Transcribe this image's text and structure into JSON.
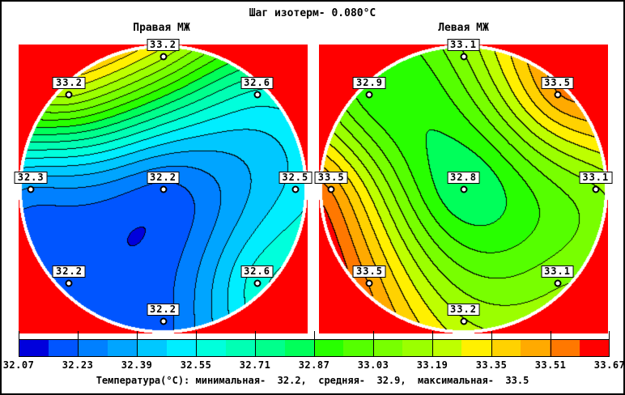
{
  "window": {
    "title": "Шаг изотерм- 0.080°C"
  },
  "chart_data": {
    "type": "heatmap",
    "subtype": "filled-contour-thermogram",
    "isotherm_step_label": "Шаг изотерм- 0.080°C",
    "isotherm_step_c": 0.08,
    "maps": [
      {
        "title": "Правая МЖ",
        "points": [
          {
            "position": "top",
            "rx": 0.0,
            "ry": -0.915,
            "value": 33.2
          },
          {
            "position": "top-left",
            "rx": -0.65,
            "ry": -0.65,
            "value": 33.2
          },
          {
            "position": "top-right",
            "rx": 0.65,
            "ry": -0.65,
            "value": 32.6
          },
          {
            "position": "left",
            "rx": -0.915,
            "ry": 0.0,
            "value": 32.3
          },
          {
            "position": "center",
            "rx": 0.0,
            "ry": 0.0,
            "value": 32.2
          },
          {
            "position": "right",
            "rx": 0.915,
            "ry": 0.0,
            "value": 32.5
          },
          {
            "position": "bottom-left",
            "rx": -0.65,
            "ry": 0.65,
            "value": 32.2
          },
          {
            "position": "bottom-right",
            "rx": 0.65,
            "ry": 0.65,
            "value": 32.6
          },
          {
            "position": "bottom",
            "rx": 0.0,
            "ry": 0.915,
            "value": 32.2
          }
        ]
      },
      {
        "title": "Левая МЖ",
        "points": [
          {
            "position": "top",
            "rx": 0.0,
            "ry": -0.915,
            "value": 33.1
          },
          {
            "position": "top-left",
            "rx": -0.65,
            "ry": -0.65,
            "value": 32.9
          },
          {
            "position": "top-right",
            "rx": 0.65,
            "ry": -0.65,
            "value": 33.5
          },
          {
            "position": "left",
            "rx": -0.915,
            "ry": 0.0,
            "value": 33.5
          },
          {
            "position": "center",
            "rx": 0.0,
            "ry": 0.0,
            "value": 32.8
          },
          {
            "position": "right",
            "rx": 0.915,
            "ry": 0.0,
            "value": 33.1
          },
          {
            "position": "bottom-left",
            "rx": -0.65,
            "ry": 0.65,
            "value": 33.5
          },
          {
            "position": "bottom-right",
            "rx": 0.65,
            "ry": 0.65,
            "value": 33.1
          },
          {
            "position": "bottom",
            "rx": 0.0,
            "ry": 0.915,
            "value": 33.2
          }
        ]
      }
    ],
    "scale": {
      "min": 32.07,
      "max": 33.67,
      "step": 0.08,
      "levels": 20,
      "tick_labels": [
        "32.07",
        "32.23",
        "32.39",
        "32.55",
        "32.71",
        "32.87",
        "33.03",
        "33.19",
        "33.35",
        "33.51",
        "33.67"
      ],
      "palette": [
        "#0000DC",
        "#0055FF",
        "#0080FF",
        "#00A5FF",
        "#00C8FF",
        "#00EEFF",
        "#00FFDC",
        "#00FFB4",
        "#00FF8C",
        "#00FF5A",
        "#28FF00",
        "#55FF00",
        "#78FF00",
        "#9BFF00",
        "#BEFF00",
        "#FFF000",
        "#FFD200",
        "#FFAA00",
        "#FF7800",
        "#FF0000"
      ]
    },
    "stats": {
      "text": "Температура(°C): минимальная-  32.2,  средняя-  32.9,  максимальная-  33.5",
      "min": 32.2,
      "avg": 32.9,
      "max": 33.5
    },
    "colors": {
      "field_background": "#FF0000",
      "circle_rim": "#FFFFFF",
      "contour_line": "#000000"
    }
  }
}
